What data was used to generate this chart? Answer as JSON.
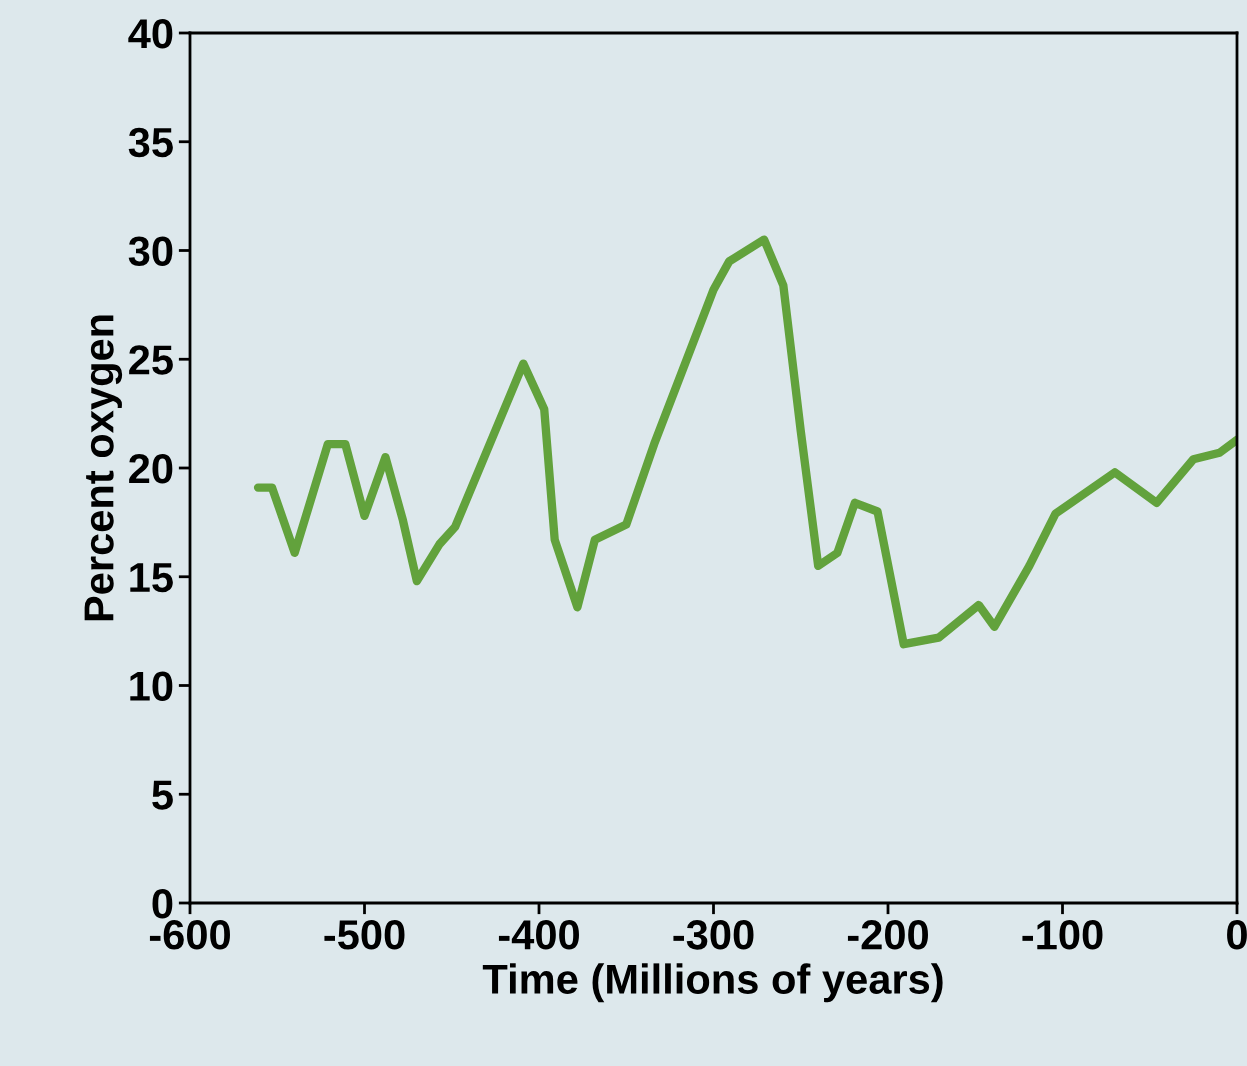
{
  "chart_data": {
    "type": "line",
    "xlabel": "Time (Millions of years)",
    "ylabel": "Percent oxygen",
    "series": [
      {
        "color": "#62a23c",
        "x": [
          -561,
          -553,
          -540,
          -521,
          -511,
          -500,
          -488,
          -478,
          -470,
          -457,
          -448,
          -409,
          -397,
          -391,
          -378,
          -368,
          -350,
          -334,
          -300,
          -291,
          -271,
          -260,
          -250,
          -240,
          -229,
          -219,
          -206,
          -191,
          -171,
          -148,
          -139,
          -119,
          -104,
          -70,
          -46,
          -25,
          -10,
          0
        ],
        "values": [
          19.1,
          19.1,
          16.1,
          21.1,
          21.1,
          17.8,
          20.5,
          17.6,
          14.8,
          16.5,
          17.3,
          24.8,
          22.7,
          16.7,
          13.6,
          16.7,
          17.4,
          21.1,
          28.2,
          29.5,
          30.5,
          28.4,
          21.7,
          15.5,
          16.1,
          18.4,
          18.0,
          11.9,
          12.2,
          13.7,
          12.7,
          15.5,
          17.9,
          19.8,
          18.4,
          20.4,
          20.7,
          21.3
        ]
      }
    ],
    "xlim": [
      -600,
      0
    ],
    "xticks": [
      -600,
      -500,
      -400,
      -300,
      -200,
      -100,
      0
    ],
    "ylim": [
      0,
      40
    ],
    "yticks": [
      0,
      5,
      10,
      15,
      20,
      25,
      30,
      35,
      40
    ],
    "grid": false,
    "legend": false
  }
}
